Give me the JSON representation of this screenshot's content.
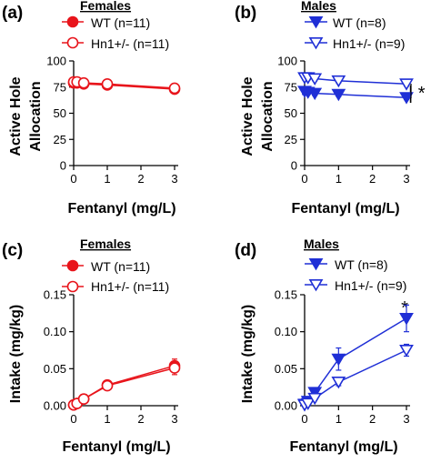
{
  "chart_data": [
    {
      "type": "line",
      "panel_label": "(a)",
      "group_title": "Females",
      "xlabel": "Fentanyl (mg/L)",
      "ylabel_lines": [
        "Active Hole",
        "Allocation"
      ],
      "xlim": [
        0,
        3
      ],
      "ylim": [
        0,
        100
      ],
      "xticks": [
        0,
        1,
        2,
        3
      ],
      "yticks": [
        0,
        25,
        50,
        75,
        100
      ],
      "color": "#e8141b",
      "x": [
        0,
        0.1,
        0.3,
        1,
        3
      ],
      "series": [
        {
          "name": "WT (n=11)",
          "marker": "circle-filled",
          "values": [
            79,
            79,
            78,
            77,
            73
          ],
          "errors": [
            3,
            3,
            3,
            3,
            2
          ]
        },
        {
          "name": "Hn1+/- (n=11)",
          "marker": "circle-open",
          "values": [
            80,
            80,
            79,
            78,
            74
          ],
          "errors": [
            3,
            3,
            3,
            3,
            2
          ]
        }
      ],
      "annotations": []
    },
    {
      "type": "line",
      "panel_label": "(b)",
      "group_title": "Males",
      "xlabel": "Fentanyl (mg/L)",
      "ylabel_lines": [
        "Active Hole",
        "Allocation"
      ],
      "xlim": [
        0,
        3
      ],
      "ylim": [
        0,
        100
      ],
      "xticks": [
        0,
        1,
        2,
        3
      ],
      "yticks": [
        0,
        25,
        50,
        75,
        100
      ],
      "color": "#1f2fd6",
      "x": [
        0,
        0.1,
        0.3,
        1,
        3
      ],
      "series": [
        {
          "name": "WT (n=8)",
          "marker": "triangle-down-filled",
          "values": [
            71,
            70,
            69,
            68,
            65
          ],
          "errors": [
            3,
            2,
            2,
            2,
            2
          ]
        },
        {
          "name": "Hn1+/- (n=9)",
          "marker": "triangle-down-open",
          "values": [
            84,
            84,
            83,
            81,
            78
          ],
          "errors": [
            2,
            2,
            2,
            2,
            2
          ]
        }
      ],
      "annotations": [
        "| *"
      ]
    },
    {
      "type": "line",
      "panel_label": "(c)",
      "group_title": "Females",
      "xlabel": "Fentanyl (mg/L)",
      "ylabel_lines": [
        "Intake (mg/kg)"
      ],
      "xlim": [
        0,
        3
      ],
      "ylim": [
        0,
        0.15
      ],
      "xticks": [
        0,
        1,
        2,
        3
      ],
      "yticks": [
        0,
        0.05,
        0.1,
        0.15
      ],
      "ytick_labels": [
        "0.00",
        "0.05",
        "0.10",
        "0.15"
      ],
      "color": "#e8141b",
      "x": [
        0,
        0.1,
        0.3,
        1,
        3
      ],
      "series": [
        {
          "name": "WT (n=11)",
          "marker": "circle-filled",
          "values": [
            0.001,
            0.003,
            0.009,
            0.028,
            0.054
          ],
          "errors": [
            0.001,
            0.001,
            0.002,
            0.004,
            0.009
          ]
        },
        {
          "name": "Hn1+/- (n=11)",
          "marker": "circle-open",
          "values": [
            0.001,
            0.003,
            0.009,
            0.027,
            0.051
          ],
          "errors": [
            0.001,
            0.001,
            0.002,
            0.004,
            0.009
          ]
        }
      ],
      "annotations": []
    },
    {
      "type": "line",
      "panel_label": "(d)",
      "group_title": "Males",
      "xlabel": "Fentanyl (mg/L)",
      "ylabel_lines": [
        "Intake (mg/kg)"
      ],
      "xlim": [
        0,
        3
      ],
      "ylim": [
        0,
        0.15
      ],
      "xticks": [
        0,
        1,
        2,
        3
      ],
      "yticks": [
        0,
        0.05,
        0.1,
        0.15
      ],
      "ytick_labels": [
        "0.00",
        "0.05",
        "0.10",
        "0.15"
      ],
      "color": "#1f2fd6",
      "x": [
        0,
        0.1,
        0.3,
        1,
        3
      ],
      "series": [
        {
          "name": "WT (n=8)",
          "marker": "triangle-down-filled",
          "values": [
            0.002,
            0.006,
            0.018,
            0.063,
            0.118
          ],
          "errors": [
            0.001,
            0.002,
            0.004,
            0.015,
            0.018
          ]
        },
        {
          "name": "Hn1+/- (n=9)",
          "marker": "triangle-down-open",
          "values": [
            0.001,
            0.003,
            0.01,
            0.032,
            0.075
          ],
          "errors": [
            0.001,
            0.001,
            0.002,
            0.005,
            0.008
          ]
        }
      ],
      "annotations": [
        "*"
      ]
    }
  ]
}
